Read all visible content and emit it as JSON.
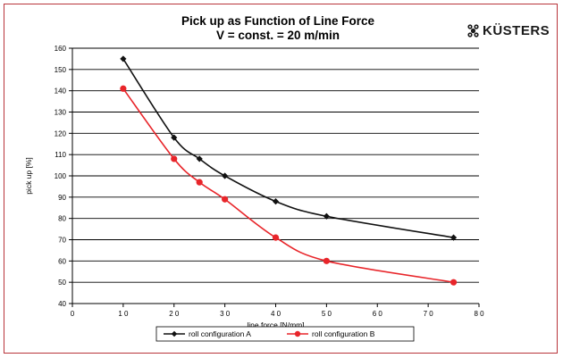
{
  "chart_data": {
    "type": "line",
    "title": "Pick up as Function of Line Force",
    "subtitle": "V = const. = 20 m/min",
    "xlabel": "line force [N/mm]",
    "ylabel": "pick up [%]",
    "xlim": [
      0,
      80
    ],
    "ylim": [
      40,
      160
    ],
    "xticks": [
      0,
      10,
      20,
      30,
      40,
      50,
      60,
      70,
      80
    ],
    "yticks": [
      40,
      50,
      60,
      70,
      80,
      90,
      100,
      110,
      120,
      130,
      140,
      150,
      160
    ],
    "grid": "horizontal",
    "legend_position": "bottom",
    "series": [
      {
        "name": "roll configuration A",
        "color": "#111111",
        "marker": "diamond",
        "x": [
          10,
          20,
          25,
          30,
          40,
          50,
          75
        ],
        "y": [
          155,
          118,
          108,
          100,
          88,
          81,
          71
        ]
      },
      {
        "name": "roll configuration B",
        "color": "#e8252a",
        "marker": "circle",
        "x": [
          10,
          20,
          25,
          30,
          40,
          50,
          75
        ],
        "y": [
          141,
          108,
          97,
          89,
          71,
          60,
          50
        ]
      }
    ]
  },
  "logo": {
    "text": "KÜSTERS",
    "icon": "kuesters-rollers-icon"
  }
}
